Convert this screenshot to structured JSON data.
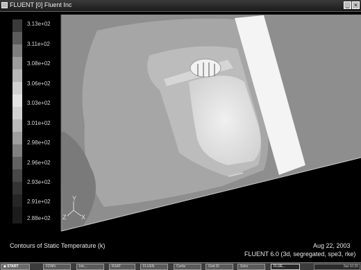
{
  "window": {
    "title": "FLUENT [0] Fluent Inc",
    "title_icon": "fluent-app-icon",
    "close_icon": "close-icon",
    "minimize_icon": "minimize-icon"
  },
  "legend": {
    "labels": [
      "3.13e+02",
      "3.11e+02",
      "3.08e+02",
      "3.06e+02",
      "3.03e+02",
      "3.01e+02",
      "2.98e+02",
      "2.96e+02",
      "2.93e+02",
      "2.91e+02",
      "2.88e+02"
    ],
    "colors": [
      "#3a3a3a",
      "#5c5c5c",
      "#7e7e7e",
      "#9c9c9c",
      "#b7b7b7",
      "#d0d0d0",
      "#e3e3e3",
      "#d2d2d2",
      "#b9b9b9",
      "#9e9e9e",
      "#808080",
      "#626262",
      "#484848",
      "#343434",
      "#262626",
      "#1c1c1c"
    ]
  },
  "axes": {
    "x": "X",
    "y": "Y",
    "z": "Z"
  },
  "caption": {
    "title": "Contours of Static Temperature (k)",
    "date": "Aug 22, 2003",
    "solver": "FLUENT 6.0 (3d, segregated, spe3, rke)"
  },
  "taskbar": {
    "start": "START",
    "items": [
      "FDNN",
      "Intr...",
      "RSAT",
      "FLUEN",
      "Cortis",
      "Grid Di",
      "Solvr",
      "FLUE..."
    ],
    "tray": "Sat 10:20"
  }
}
